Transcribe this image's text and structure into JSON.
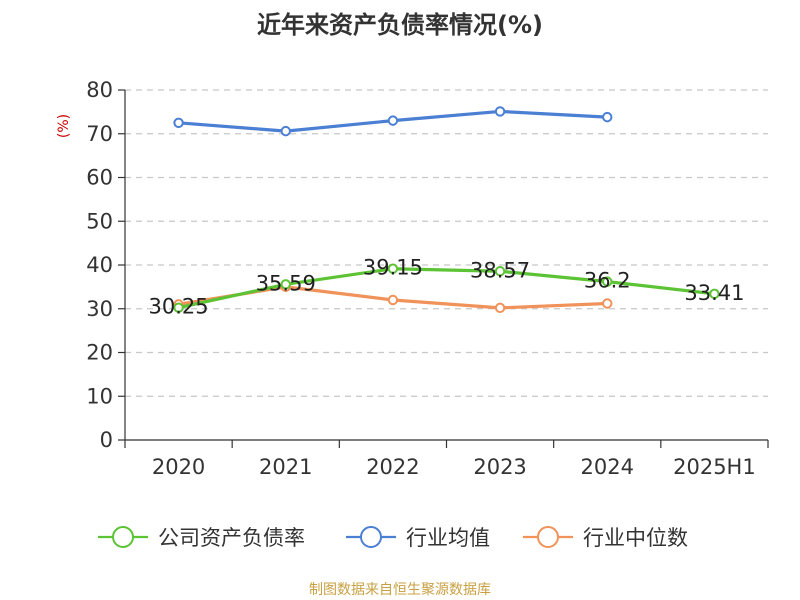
{
  "title": "近年来资产负债率情况(%)",
  "source": "制图数据来自恒生聚源数据库",
  "chart_data": {
    "type": "line",
    "title": "近年来资产负债率情况(%)",
    "ylabel": "(%)",
    "xlabel": "",
    "categories": [
      "2020",
      "2021",
      "2022",
      "2023",
      "2024",
      "2025H1"
    ],
    "y_ticks": [
      0,
      10,
      20,
      30,
      40,
      50,
      60,
      70,
      80
    ],
    "ylim": [
      0,
      80
    ],
    "grid": "horizontal dashed",
    "legend_position": "bottom",
    "series": [
      {
        "name": "公司资产负债率",
        "color": "#5cc334",
        "values": [
          30.25,
          35.59,
          39.15,
          38.57,
          36.2,
          33.41
        ],
        "labels": [
          "30.25",
          "35.59",
          "39.15",
          "38.57",
          "36.2",
          "33.41"
        ]
      },
      {
        "name": "行业均值",
        "color": "#4a7fd4",
        "values": [
          72.5,
          70.6,
          73.0,
          75.1,
          73.8,
          null
        ]
      },
      {
        "name": "行业中位数",
        "color": "#f0925a",
        "values": [
          31.0,
          35.0,
          32.0,
          30.2,
          31.2,
          null
        ]
      }
    ]
  },
  "colors": {
    "ylabel": "#cc0000",
    "source": "#c8a042"
  }
}
